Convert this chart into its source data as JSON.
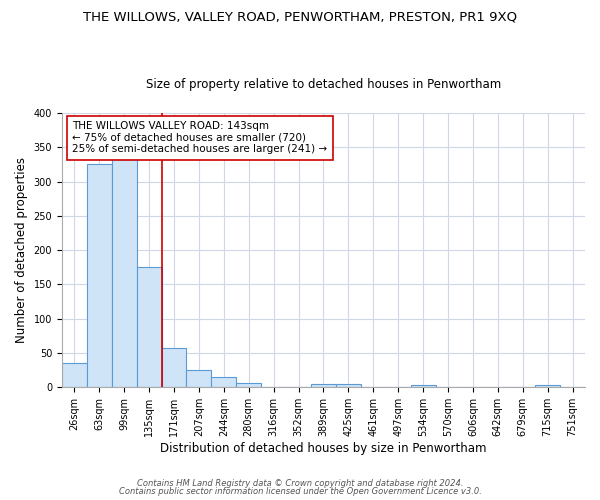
{
  "title": "THE WILLOWS, VALLEY ROAD, PENWORTHAM, PRESTON, PR1 9XQ",
  "subtitle": "Size of property relative to detached houses in Penwortham",
  "xlabel": "Distribution of detached houses by size in Penwortham",
  "ylabel": "Number of detached properties",
  "categories": [
    "26sqm",
    "63sqm",
    "99sqm",
    "135sqm",
    "171sqm",
    "207sqm",
    "244sqm",
    "280sqm",
    "316sqm",
    "352sqm",
    "389sqm",
    "425sqm",
    "461sqm",
    "497sqm",
    "534sqm",
    "570sqm",
    "606sqm",
    "642sqm",
    "679sqm",
    "715sqm",
    "751sqm"
  ],
  "values": [
    35,
    325,
    335,
    175,
    57,
    25,
    15,
    6,
    0,
    0,
    5,
    5,
    0,
    0,
    4,
    0,
    0,
    0,
    0,
    4,
    0
  ],
  "bar_color": "#d0e4f7",
  "bar_edge_color": "#5b9bd5",
  "vline_x_index": 3,
  "vline_color": "#cc0000",
  "annotation_text": "THE WILLOWS VALLEY ROAD: 143sqm\n← 75% of detached houses are smaller (720)\n25% of semi-detached houses are larger (241) →",
  "footer1": "Contains HM Land Registry data © Crown copyright and database right 2024.",
  "footer2": "Contains public sector information licensed under the Open Government Licence v3.0.",
  "background_color": "#ffffff",
  "plot_background_color": "#ffffff",
  "grid_color": "#d0d8e8",
  "ylim": [
    0,
    400
  ],
  "yticks": [
    0,
    50,
    100,
    150,
    200,
    250,
    300,
    350,
    400
  ],
  "title_fontsize": 9.5,
  "subtitle_fontsize": 8.5,
  "axis_label_fontsize": 8.5,
  "tick_fontsize": 7,
  "annotation_fontsize": 7.5,
  "footer_fontsize": 6
}
